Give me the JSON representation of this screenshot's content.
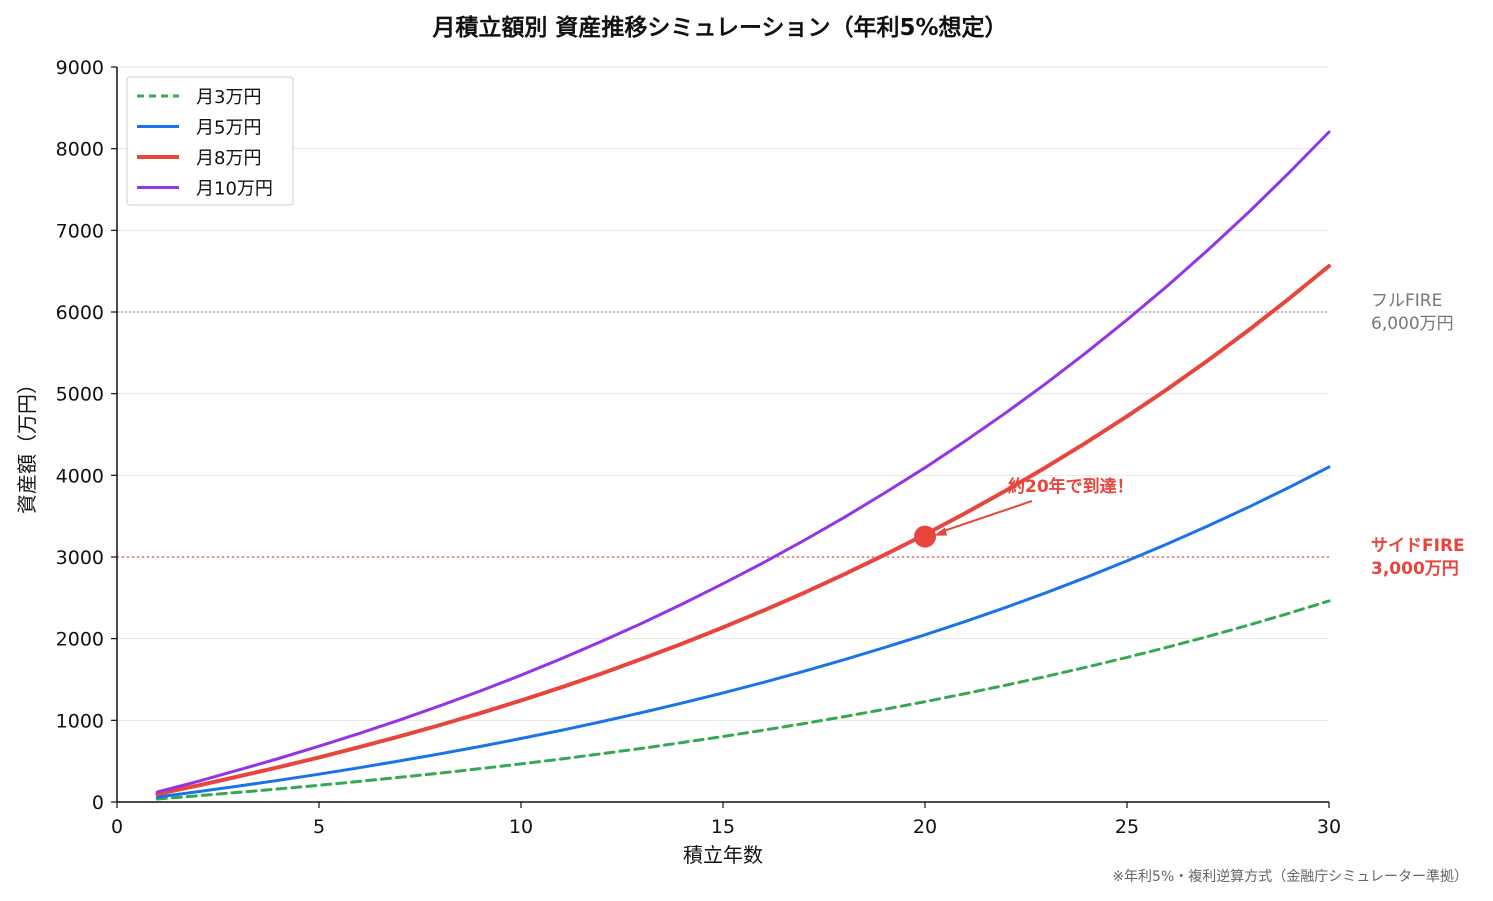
{
  "chart_data": {
    "type": "line",
    "title": "月積立額別 資産推移シミュレーション（年利5%想定）",
    "xlabel": "積立年数",
    "ylabel": "資産額（万円）",
    "xlim": [
      0,
      30
    ],
    "ylim": [
      0,
      9000
    ],
    "x_ticks": [
      0,
      5,
      10,
      15,
      20,
      25,
      30
    ],
    "y_ticks": [
      0,
      1000,
      2000,
      3000,
      4000,
      5000,
      6000,
      7000,
      8000,
      9000
    ],
    "grid": "horizontal",
    "legend_position": "top-left",
    "x": [
      1,
      2,
      3,
      4,
      5,
      6,
      7,
      8,
      9,
      10,
      11,
      12,
      13,
      14,
      15,
      16,
      17,
      18,
      19,
      20,
      21,
      22,
      23,
      24,
      25,
      26,
      27,
      28,
      29,
      30
    ],
    "series": [
      {
        "name": "月3万円",
        "color": "#34a853",
        "style": "dashed",
        "values": [
          37,
          76,
          117,
          160,
          205,
          252,
          302,
          354,
          409,
          466,
          527,
          591,
          658,
          728,
          802,
          879,
          960,
          1046,
          1135,
          1228,
          1327,
          1430,
          1538,
          1652,
          1771,
          1896,
          2027,
          2165,
          2310,
          2462
        ]
      },
      {
        "name": "月5万円",
        "color": "#1a73e8",
        "style": "solid",
        "values": [
          61,
          126,
          195,
          266,
          341,
          420,
          503,
          590,
          681,
          777,
          878,
          984,
          1096,
          1213,
          1336,
          1465,
          1600,
          1743,
          1892,
          2047,
          2211,
          2383,
          2563,
          2753,
          2952,
          3160,
          3379,
          3608,
          3850,
          4102
        ]
      },
      {
        "name": "月8万円",
        "color": "#e8453c",
        "style": "solid",
        "values": [
          98,
          201,
          312,
          426,
          546,
          672,
          804,
          943,
          1089,
          1243,
          1404,
          1574,
          1753,
          1941,
          2138,
          2344,
          2561,
          2788,
          3027,
          3275,
          3538,
          3813,
          4101,
          4405,
          4723,
          5056,
          5406,
          5773,
          6159,
          6563
        ]
      },
      {
        "name": "月10万円",
        "color": "#9334e6",
        "style": "solid",
        "values": [
          123,
          252,
          390,
          533,
          683,
          840,
          1005,
          1179,
          1361,
          1553,
          1755,
          1968,
          2191,
          2426,
          2673,
          2930,
          3201,
          3485,
          3784,
          4094,
          4422,
          4766,
          5127,
          5506,
          5904,
          6320,
          6758,
          7216,
          7699,
          8204
        ]
      }
    ],
    "reference_lines": [
      {
        "y": 6000,
        "label_line1": "フルFIRE",
        "label_line2": "6,000万円",
        "color": "#999999"
      },
      {
        "y": 3000,
        "label_line1": "サイドFIRE",
        "label_line2": "3,000万円",
        "color": "#e8453c"
      }
    ],
    "annotation": {
      "text": "約20年で到達！",
      "x": 20,
      "y": 3250,
      "color": "#e8453c"
    },
    "footnote": "※年利5%・複利逆算方式（金融庁シミュレーター準拠）"
  }
}
